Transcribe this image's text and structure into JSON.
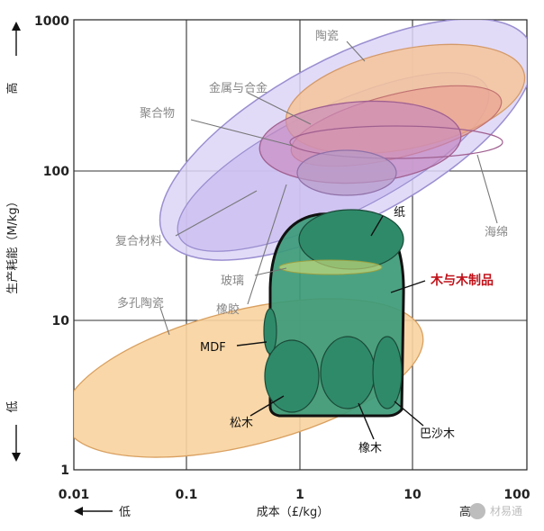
{
  "chart_data": {
    "type": "bubble-region",
    "xlabel": "成本（£/kg）",
    "ylabel": "生产耗能（M/kg）",
    "x_scale": "log",
    "y_scale": "log",
    "xlim": [
      0.01,
      100
    ],
    "ylim": [
      1,
      1000
    ],
    "x_ticks": [
      "0.01",
      "0.1",
      "1",
      "10",
      "100"
    ],
    "y_ticks": [
      "1",
      "10",
      "100",
      "1000"
    ],
    "x_low_label": "低",
    "x_high_label": "高",
    "y_low_label": "低",
    "y_high_label": "高",
    "grid": true,
    "regions": [
      {
        "name": "陶瓷",
        "color": "#f4c49a"
      },
      {
        "name": "金属与合金",
        "color": "#e59c94"
      },
      {
        "name": "聚合物",
        "color": "#c88ac0"
      },
      {
        "name": "复合材料",
        "color": "#c8b8f0"
      },
      {
        "name": "海绵",
        "color": "#d8d0f5"
      },
      {
        "name": "玻璃",
        "color": "#d8e27a"
      },
      {
        "name": "橡胶",
        "color": "#b79bc8"
      },
      {
        "name": "多孔陶瓷",
        "color": "#f8d39e"
      },
      {
        "name": "木与木制品",
        "color": "#3c9a78"
      },
      {
        "name": "纸",
        "color": "#2f8a6a"
      },
      {
        "name": "MDF",
        "color": "#2f8a6a"
      },
      {
        "name": "松木",
        "color": "#2f8a6a"
      },
      {
        "name": "橡木",
        "color": "#2f8a6a"
      },
      {
        "name": "巴沙木",
        "color": "#2f8a6a"
      }
    ]
  },
  "watermark": "材易通"
}
